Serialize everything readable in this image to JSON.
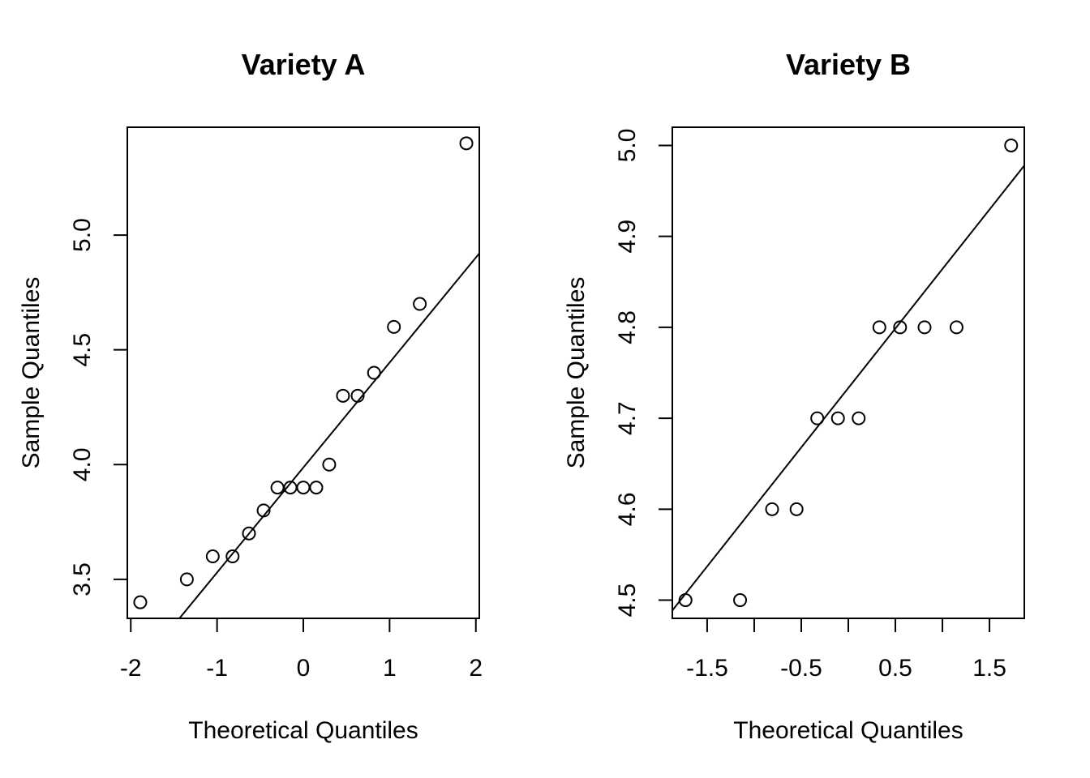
{
  "chart_data": [
    {
      "type": "scatter",
      "title": "Variety A",
      "xlabel": "Theoretical Quantiles",
      "ylabel": "Sample Quantiles",
      "xlim": [
        -2.04,
        2.04
      ],
      "ylim": [
        3.33,
        5.47
      ],
      "xticks": [
        -2,
        -1,
        0,
        1,
        2
      ],
      "xtick_labels": [
        "-2",
        "-1",
        "0",
        "1",
        "2"
      ],
      "yticks": [
        3.5,
        4.0,
        4.5,
        5.0
      ],
      "ytick_labels": [
        "3.5",
        "4.0",
        "4.5",
        "5.0"
      ],
      "points": {
        "x": [
          -1.89,
          -1.35,
          -1.05,
          -0.82,
          -0.63,
          -0.46,
          -0.3,
          -0.15,
          0.0,
          0.15,
          0.3,
          0.46,
          0.63,
          0.82,
          1.05,
          1.35,
          1.89
        ],
        "y": [
          3.4,
          3.5,
          3.6,
          3.6,
          3.7,
          3.8,
          3.9,
          3.9,
          3.9,
          3.9,
          4.0,
          4.3,
          4.3,
          4.4,
          4.6,
          4.7,
          5.4
        ]
      },
      "reference_line": {
        "intercept": 3.987,
        "slope": 0.4575
      },
      "marker": "open-circle",
      "grid": false,
      "legend": "none"
    },
    {
      "type": "scatter",
      "title": "Variety B",
      "xlabel": "Theoretical Quantiles",
      "ylabel": "Sample Quantiles",
      "xlim": [
        -1.87,
        1.87
      ],
      "ylim": [
        4.48,
        5.02
      ],
      "xticks": [
        -1.5,
        -1.0,
        -0.5,
        0.0,
        0.5,
        1.0,
        1.5
      ],
      "xtick_labels": [
        "-1.5",
        "",
        "-0.5",
        "",
        "0.5",
        "",
        "1.5"
      ],
      "yticks": [
        4.5,
        4.6,
        4.7,
        4.8,
        4.9,
        5.0
      ],
      "ytick_labels": [
        "4.5",
        "4.6",
        "4.7",
        "4.8",
        "4.9",
        "5.0"
      ],
      "points": {
        "x": [
          -1.73,
          -1.15,
          -0.81,
          -0.55,
          -0.33,
          -0.11,
          0.11,
          0.33,
          0.55,
          0.81,
          1.15,
          1.73
        ],
        "y": [
          4.5,
          4.5,
          4.6,
          4.6,
          4.7,
          4.7,
          4.7,
          4.8,
          4.8,
          4.8,
          4.8,
          5.0
        ]
      },
      "reference_line": {
        "intercept": 4.7333,
        "slope": 0.1308
      },
      "marker": "open-circle",
      "grid": false,
      "legend": "none"
    }
  ]
}
